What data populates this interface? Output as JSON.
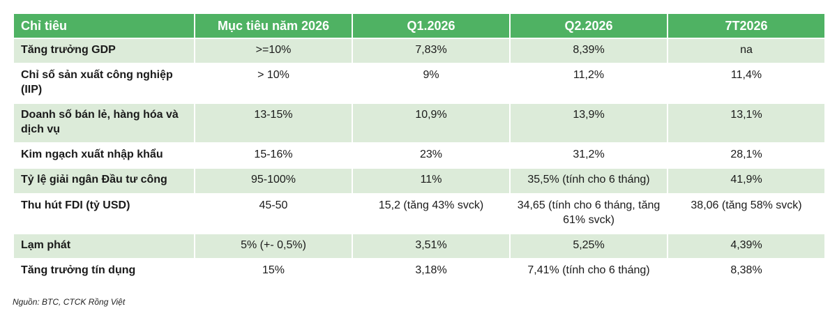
{
  "table": {
    "headers": [
      "Chỉ tiêu",
      "Mục tiêu năm 2026",
      "Q1.2026",
      "Q2.2026",
      "7T2026"
    ],
    "rows": [
      {
        "label": "Tăng trưởng GDP",
        "values": [
          ">=10%",
          "7,83%",
          "8,39%",
          "na"
        ]
      },
      {
        "label": "Chỉ số sản xuất công nghiệp (IIP)",
        "values": [
          "> 10%",
          "9%",
          "11,2%",
          "11,4%"
        ]
      },
      {
        "label": "Doanh số bán lẻ, hàng hóa và dịch vụ",
        "values": [
          "13-15%",
          "10,9%",
          "13,9%",
          "13,1%"
        ]
      },
      {
        "label": "Kim ngạch xuất nhập khẩu",
        "values": [
          "15-16%",
          "23%",
          "31,2%",
          "28,1%"
        ]
      },
      {
        "label": "Tỷ lệ giải ngân Đầu tư công",
        "values": [
          "95-100%",
          "11%",
          "35,5% (tính cho 6 tháng)",
          "41,9%"
        ]
      },
      {
        "label": "Thu hút FDI (tỷ USD)",
        "values": [
          "45-50",
          "15,2 (tăng 43% svck)",
          "34,65 (tính cho 6 tháng, tăng 61% svck)",
          "38,06 (tăng 58% svck)"
        ]
      },
      {
        "label": "Lạm phát",
        "values": [
          "5% (+- 0,5%)",
          "3,51%",
          "5,25%",
          "4,39%"
        ]
      },
      {
        "label": "Tăng trưởng tín dụng",
        "values": [
          "15%",
          "3,18%",
          "7,41% (tính cho 6 tháng)",
          "8,38%"
        ]
      }
    ]
  },
  "source": "Nguồn: BTC, CTCK Rồng Việt",
  "colors": {
    "header_bg": "#4fb263",
    "stripe_bg": "#dcebd9"
  }
}
